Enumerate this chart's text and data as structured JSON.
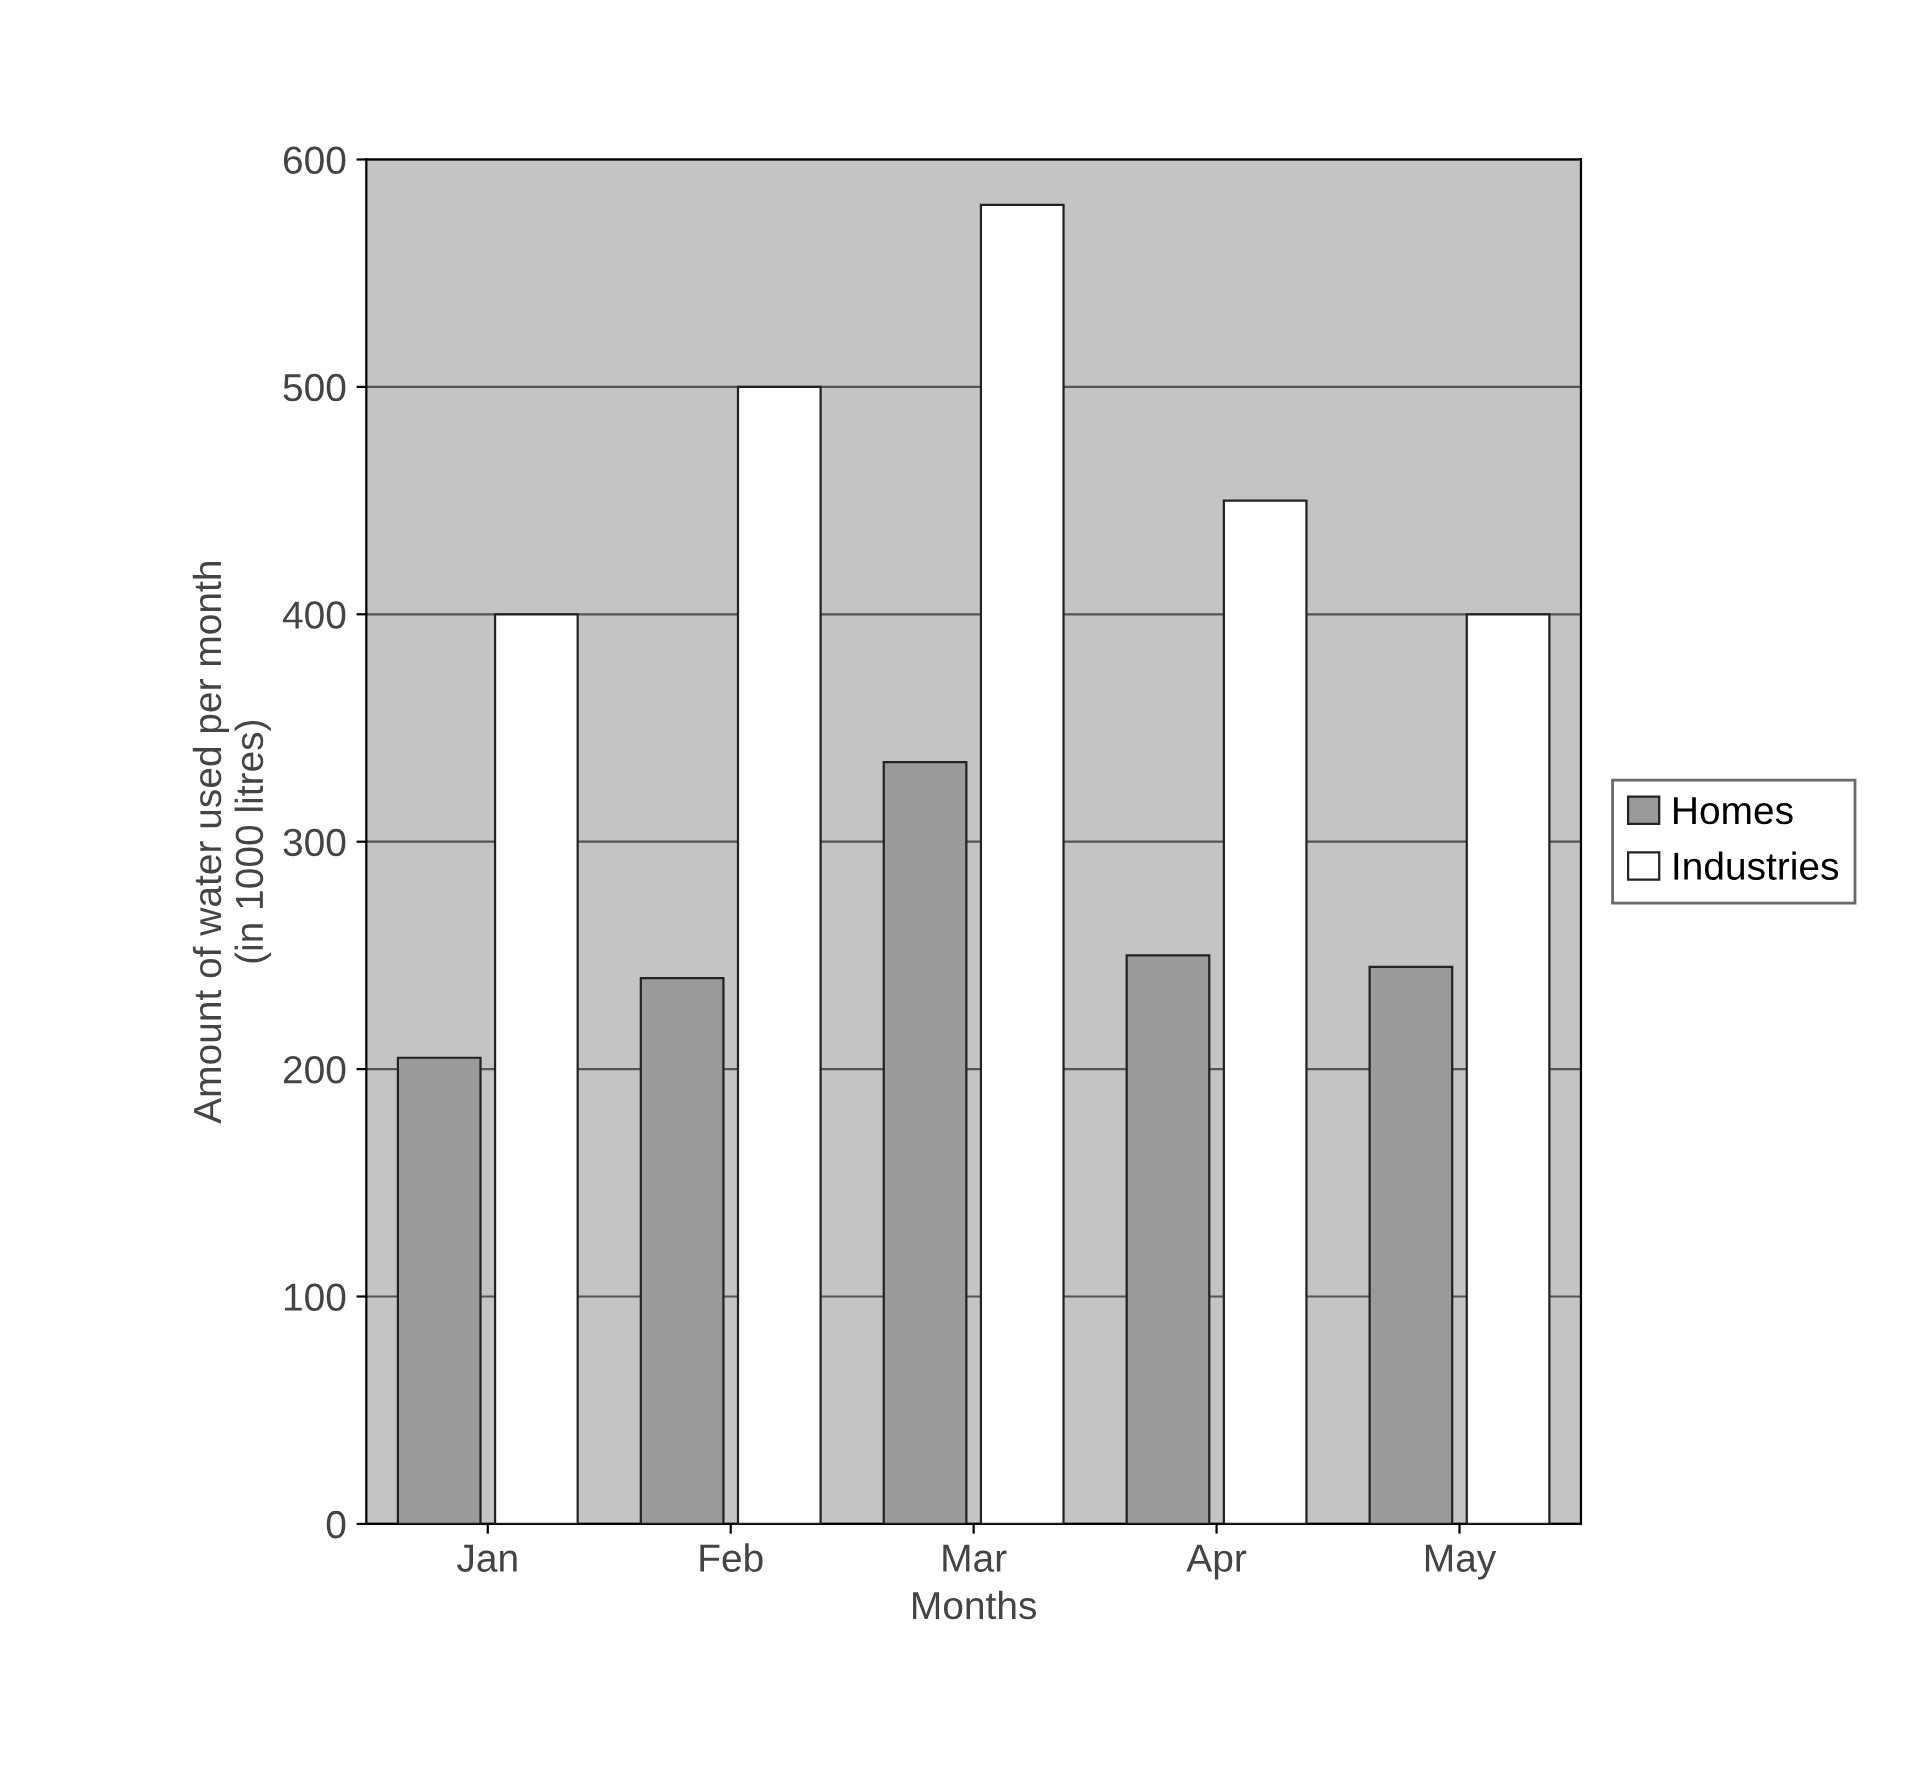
{
  "chart_data": {
    "type": "bar",
    "xlabel": "Months",
    "ylabel": "Amount of water used per month\n(in 1000 litres)",
    "categories": [
      "Jan",
      "Feb",
      "Mar",
      "Apr",
      "May"
    ],
    "series": [
      {
        "name": "Homes",
        "color": "#9a9a9a",
        "values": [
          205,
          240,
          335,
          250,
          245
        ]
      },
      {
        "name": "Industries",
        "color": "#ffffff",
        "values": [
          400,
          500,
          580,
          450,
          400
        ]
      }
    ],
    "ylim": [
      0,
      600
    ],
    "yticks": [
      0,
      100,
      200,
      300,
      400,
      500,
      600
    ],
    "grid": "y",
    "legend": "right"
  }
}
